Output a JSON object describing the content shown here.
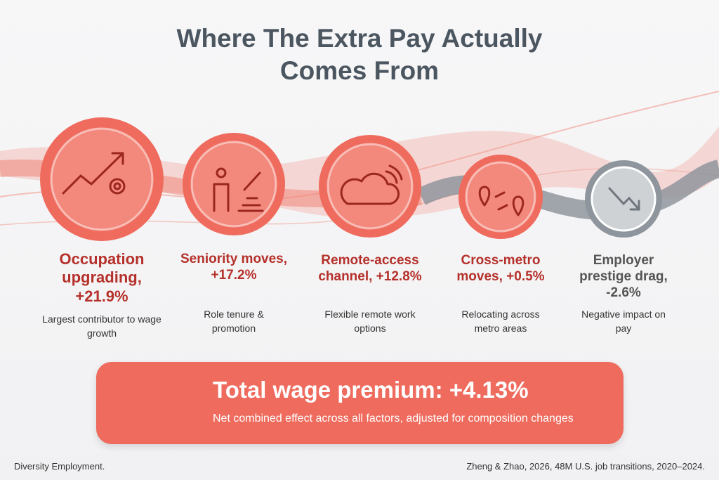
{
  "title": "Where The Extra Pay Actually Comes From",
  "factors": [
    {
      "label": "Occupation upgrading, +21.9%",
      "description": "Largest contributor to wage growth"
    },
    {
      "label": "Seniority moves, +17.2%",
      "description": "Role tenure & promotion"
    },
    {
      "label": "Remote-access channel, +12.8%",
      "description": "Flexible remote work options"
    },
    {
      "label": "Cross-metro moves, +0.5%",
      "description": "Relocating across metro areas"
    },
    {
      "label": "Employer prestige drag, -2.6%",
      "description": "Negative impact on pay"
    }
  ],
  "total": {
    "title": "Total wage premium: +4.13%",
    "subtitle": "Net combined effect across all factors, adjusted for composition changes"
  },
  "footer": {
    "left": "Diversity Employment.",
    "right": "Zheng & Zhao, 2026, 48M U.S. job transitions, 2020–2024."
  }
}
